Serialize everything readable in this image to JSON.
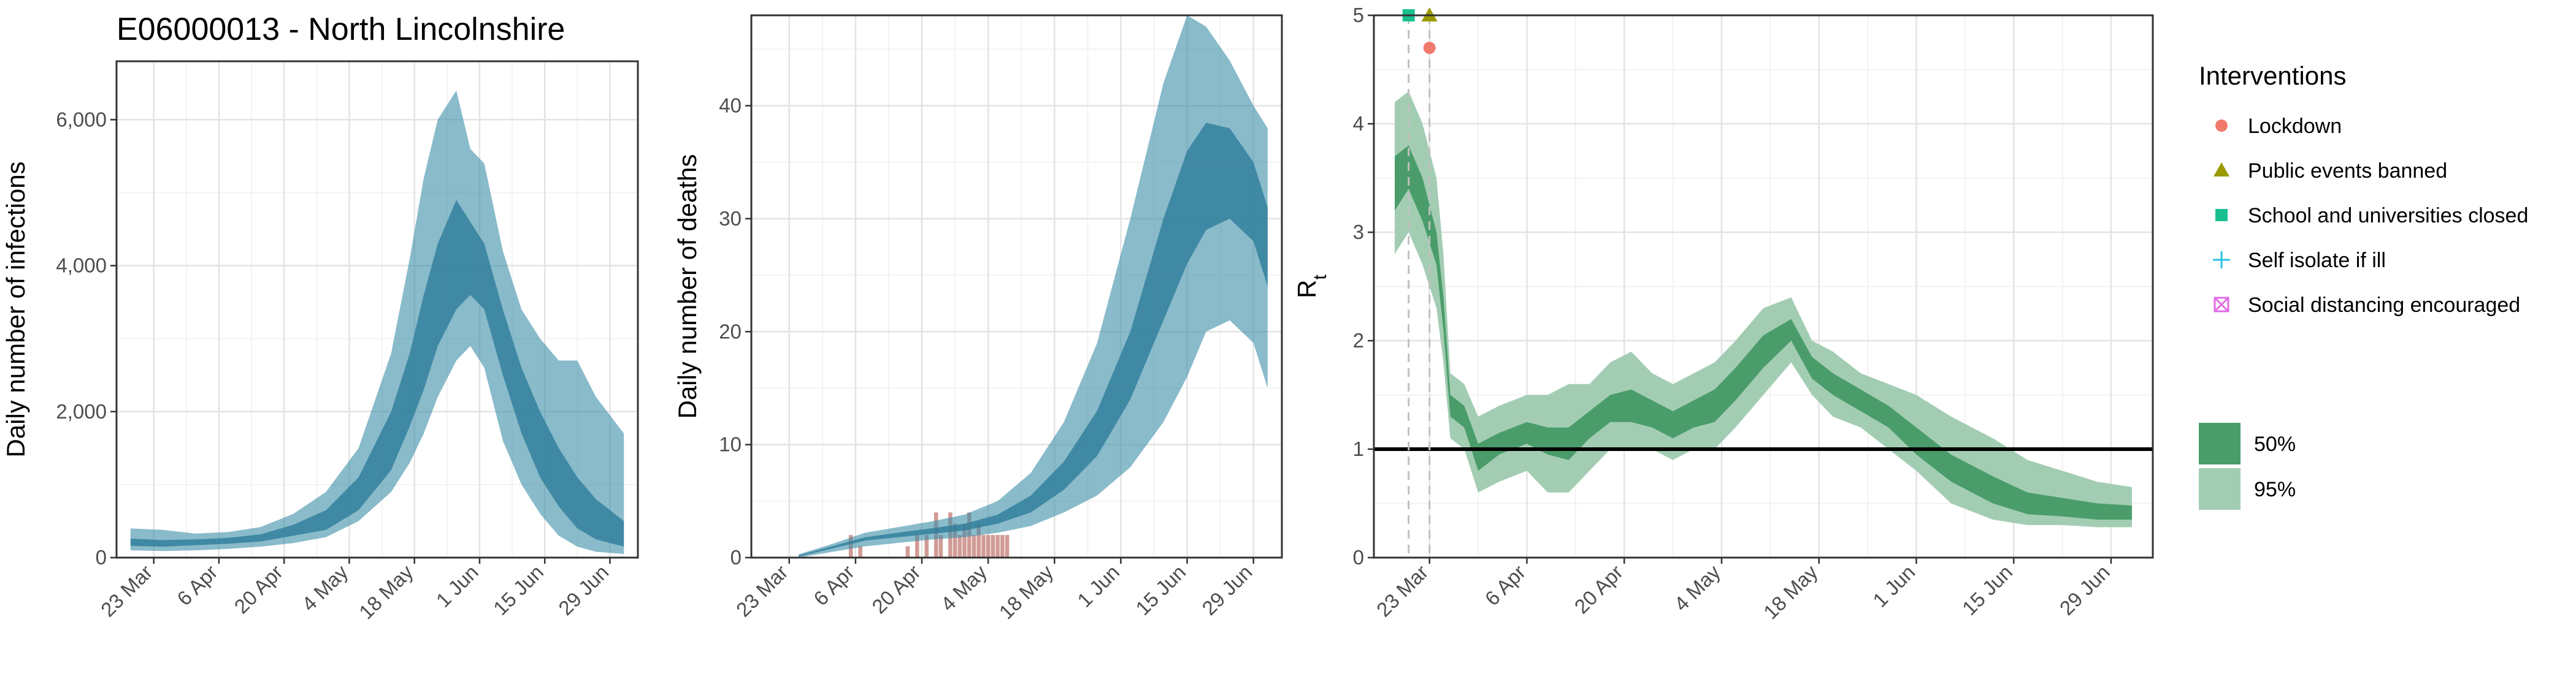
{
  "figure_title": "E06000013 - North Lincolnshire",
  "x_tick_labels": [
    "23 Mar",
    "6 Apr",
    "20 Apr",
    "4 May",
    "18 May",
    "1 Jun",
    "15 Jun",
    "29 Jun"
  ],
  "chart_data": [
    {
      "type": "area",
      "ylabel": "Daily number of infections",
      "ylim": [
        0,
        6800
      ],
      "y_ticks": [
        0,
        2000,
        4000,
        6000
      ],
      "y_tick_labels": [
        "0",
        "2,000",
        "4,000",
        "6,000"
      ],
      "grid": true,
      "series": [
        {
          "name": "95%",
          "color": "#3a8ea8",
          "x": [
            "2020-03-18",
            "2020-03-25",
            "2020-04-01",
            "2020-04-08",
            "2020-04-15",
            "2020-04-22",
            "2020-04-29",
            "2020-05-06",
            "2020-05-13",
            "2020-05-17",
            "2020-05-20",
            "2020-05-23",
            "2020-05-27",
            "2020-05-30",
            "2020-06-02",
            "2020-06-06",
            "2020-06-10",
            "2020-06-14",
            "2020-06-18",
            "2020-06-22",
            "2020-06-26",
            "2020-07-02"
          ],
          "lower": [
            100,
            90,
            100,
            120,
            150,
            200,
            280,
            500,
            900,
            1300,
            1700,
            2200,
            2700,
            2900,
            2600,
            1600,
            1000,
            600,
            300,
            150,
            80,
            50
          ],
          "upper": [
            400,
            380,
            330,
            350,
            420,
            600,
            900,
            1500,
            2800,
            4100,
            5200,
            6000,
            6400,
            5600,
            5400,
            4200,
            3400,
            3000,
            2700,
            2700,
            2200,
            1700
          ]
        },
        {
          "name": "50%",
          "color": "#2e7d9a",
          "x": [
            "2020-03-18",
            "2020-03-25",
            "2020-04-01",
            "2020-04-08",
            "2020-04-15",
            "2020-04-22",
            "2020-04-29",
            "2020-05-06",
            "2020-05-13",
            "2020-05-17",
            "2020-05-20",
            "2020-05-23",
            "2020-05-27",
            "2020-05-30",
            "2020-06-02",
            "2020-06-06",
            "2020-06-10",
            "2020-06-14",
            "2020-06-18",
            "2020-06-22",
            "2020-06-26",
            "2020-07-02"
          ],
          "lower": [
            160,
            150,
            170,
            190,
            220,
            300,
            380,
            650,
            1200,
            1800,
            2300,
            2900,
            3400,
            3600,
            3400,
            2500,
            1700,
            1100,
            700,
            400,
            250,
            150
          ],
          "upper": [
            260,
            240,
            250,
            270,
            320,
            450,
            650,
            1100,
            2000,
            2800,
            3600,
            4300,
            4900,
            4600,
            4300,
            3400,
            2600,
            2000,
            1500,
            1100,
            800,
            500
          ]
        }
      ]
    },
    {
      "type": "area",
      "ylabel": "Daily number of deaths",
      "ylim": [
        0,
        48
      ],
      "y_ticks": [
        0,
        10,
        20,
        30,
        40
      ],
      "y_tick_labels": [
        "0",
        "10",
        "20",
        "30",
        "40"
      ],
      "grid": true,
      "series": [
        {
          "name": "95%",
          "color": "#3a8ea8",
          "x": [
            "2020-03-25",
            "2020-04-01",
            "2020-04-08",
            "2020-04-15",
            "2020-04-22",
            "2020-04-29",
            "2020-05-06",
            "2020-05-13",
            "2020-05-20",
            "2020-05-27",
            "2020-06-03",
            "2020-06-10",
            "2020-06-15",
            "2020-06-19",
            "2020-06-24",
            "2020-06-29",
            "2020-07-02"
          ],
          "lower": [
            0,
            0.5,
            1.0,
            1.3,
            1.6,
            1.8,
            2.2,
            2.8,
            4.0,
            5.5,
            8,
            12,
            16,
            20,
            21,
            19,
            15
          ],
          "upper": [
            0.3,
            1.2,
            2.2,
            2.7,
            3.2,
            3.8,
            5.0,
            7.5,
            12,
            19,
            30,
            42,
            48,
            47,
            44,
            40,
            38
          ]
        },
        {
          "name": "50%",
          "color": "#2e7d9a",
          "x": [
            "2020-03-25",
            "2020-04-01",
            "2020-04-08",
            "2020-04-15",
            "2020-04-22",
            "2020-04-29",
            "2020-05-06",
            "2020-05-13",
            "2020-05-20",
            "2020-05-27",
            "2020-06-03",
            "2020-06-10",
            "2020-06-15",
            "2020-06-19",
            "2020-06-24",
            "2020-06-29",
            "2020-07-02"
          ],
          "lower": [
            0.1,
            0.8,
            1.5,
            1.8,
            2.1,
            2.4,
            3.0,
            4.0,
            6.0,
            9.0,
            14,
            21,
            26,
            29,
            30,
            28,
            24
          ],
          "upper": [
            0.2,
            1.0,
            1.8,
            2.2,
            2.6,
            3.0,
            3.8,
            5.5,
            8.5,
            13,
            20,
            30,
            36,
            38.5,
            38,
            35,
            31
          ]
        }
      ],
      "observed_deaths": {
        "type": "bar",
        "color": "#c98a84",
        "x": [
          "2020-04-05",
          "2020-04-07",
          "2020-04-17",
          "2020-04-19",
          "2020-04-21",
          "2020-04-23",
          "2020-04-24",
          "2020-04-26",
          "2020-04-27",
          "2020-04-28",
          "2020-04-29",
          "2020-04-30",
          "2020-05-01",
          "2020-05-02",
          "2020-05-03",
          "2020-05-04",
          "2020-05-05",
          "2020-05-06",
          "2020-05-07",
          "2020-05-08"
        ],
        "values": [
          2,
          1,
          1,
          2,
          2,
          4,
          2,
          4,
          3,
          2,
          3,
          4,
          2,
          3,
          2,
          2,
          2,
          2,
          2,
          2
        ]
      }
    },
    {
      "type": "line",
      "ylabel": "R",
      "ylabel_subscript": "t",
      "ylim": [
        0,
        5
      ],
      "y_ticks": [
        0,
        1,
        2,
        3,
        4,
        5
      ],
      "y_tick_labels": [
        "0",
        "1",
        "2",
        "3",
        "4",
        "5"
      ],
      "grid": true,
      "reference_line": 1,
      "series": [
        {
          "name": "95%",
          "color": "#a3cdb3",
          "x": [
            "2020-03-18",
            "2020-03-20",
            "2020-03-22",
            "2020-03-24",
            "2020-03-25",
            "2020-03-26",
            "2020-03-28",
            "2020-03-30",
            "2020-04-02",
            "2020-04-06",
            "2020-04-09",
            "2020-04-12",
            "2020-04-15",
            "2020-04-18",
            "2020-04-21",
            "2020-04-24",
            "2020-04-27",
            "2020-04-30",
            "2020-05-03",
            "2020-05-06",
            "2020-05-10",
            "2020-05-14",
            "2020-05-17",
            "2020-05-20",
            "2020-05-24",
            "2020-05-28",
            "2020-06-01",
            "2020-06-06",
            "2020-06-12",
            "2020-06-17",
            "2020-06-22",
            "2020-06-27",
            "2020-07-02"
          ],
          "lower": [
            2.8,
            3.0,
            2.7,
            2.3,
            1.8,
            1.1,
            1.0,
            0.6,
            0.7,
            0.8,
            0.6,
            0.6,
            0.8,
            1.0,
            1.0,
            1.0,
            0.9,
            1.0,
            1.0,
            1.2,
            1.5,
            1.8,
            1.5,
            1.3,
            1.2,
            1.0,
            0.8,
            0.5,
            0.35,
            0.3,
            0.3,
            0.28,
            0.28
          ],
          "upper": [
            4.2,
            4.3,
            4.0,
            3.5,
            2.8,
            1.7,
            1.6,
            1.3,
            1.4,
            1.5,
            1.5,
            1.6,
            1.6,
            1.8,
            1.9,
            1.7,
            1.6,
            1.7,
            1.8,
            2.0,
            2.3,
            2.4,
            2.0,
            1.9,
            1.7,
            1.6,
            1.5,
            1.3,
            1.1,
            0.9,
            0.8,
            0.7,
            0.65
          ]
        },
        {
          "name": "50%",
          "color": "#4a9d6a",
          "x": [
            "2020-03-18",
            "2020-03-20",
            "2020-03-22",
            "2020-03-24",
            "2020-03-25",
            "2020-03-26",
            "2020-03-28",
            "2020-03-30",
            "2020-04-02",
            "2020-04-06",
            "2020-04-09",
            "2020-04-12",
            "2020-04-15",
            "2020-04-18",
            "2020-04-21",
            "2020-04-24",
            "2020-04-27",
            "2020-04-30",
            "2020-05-03",
            "2020-05-06",
            "2020-05-10",
            "2020-05-14",
            "2020-05-17",
            "2020-05-20",
            "2020-05-24",
            "2020-05-28",
            "2020-06-01",
            "2020-06-06",
            "2020-06-12",
            "2020-06-17",
            "2020-06-22",
            "2020-06-27",
            "2020-07-02"
          ],
          "lower": [
            3.2,
            3.4,
            3.1,
            2.7,
            2.1,
            1.3,
            1.2,
            0.8,
            0.95,
            1.05,
            0.95,
            0.9,
            1.1,
            1.25,
            1.25,
            1.2,
            1.1,
            1.2,
            1.25,
            1.45,
            1.75,
            2.0,
            1.65,
            1.5,
            1.35,
            1.2,
            0.95,
            0.7,
            0.5,
            0.4,
            0.38,
            0.35,
            0.35
          ],
          "upper": [
            3.7,
            3.8,
            3.5,
            3.0,
            2.4,
            1.5,
            1.4,
            1.05,
            1.15,
            1.25,
            1.2,
            1.2,
            1.35,
            1.5,
            1.55,
            1.45,
            1.35,
            1.45,
            1.55,
            1.75,
            2.05,
            2.2,
            1.85,
            1.7,
            1.55,
            1.4,
            1.2,
            0.95,
            0.75,
            0.6,
            0.55,
            0.5,
            0.48
          ]
        }
      ],
      "interventions": [
        {
          "name": "Lockdown",
          "date": "2020-03-23",
          "r_value": 4.7,
          "color": "#f07a6c",
          "shape": "circle"
        },
        {
          "name": "Public events banned",
          "date": "2020-03-23",
          "r_value": 5.0,
          "color": "#9a9a00",
          "shape": "triangle"
        },
        {
          "name": "School and universities closed",
          "date": "2020-03-20",
          "r_value": 5.0,
          "color": "#1abf8f",
          "shape": "square"
        },
        {
          "name": "Self isolate if ill",
          "date": null,
          "r_value": null,
          "color": "#2ac2e8",
          "shape": "plus"
        },
        {
          "name": "Social distancing encouraged",
          "date": null,
          "r_value": null,
          "color": "#e36ae6",
          "shape": "boxed-x"
        }
      ]
    }
  ],
  "legend": {
    "interventions_title": "Interventions",
    "interventions": [
      {
        "label": "Lockdown",
        "color": "#f07a6c",
        "shape": "circle"
      },
      {
        "label": "Public events banned",
        "color": "#9a9a00",
        "shape": "triangle"
      },
      {
        "label": "School and universities closed",
        "color": "#1abf8f",
        "shape": "square"
      },
      {
        "label": "Self isolate if ill",
        "color": "#2ac2e8",
        "shape": "plus"
      },
      {
        "label": "Social distancing encouraged",
        "color": "#e36ae6",
        "shape": "boxed-x"
      }
    ],
    "ci": [
      {
        "label": "50%",
        "color": "#4a9d6a"
      },
      {
        "label": "95%",
        "color": "#a3cdb3"
      }
    ]
  }
}
